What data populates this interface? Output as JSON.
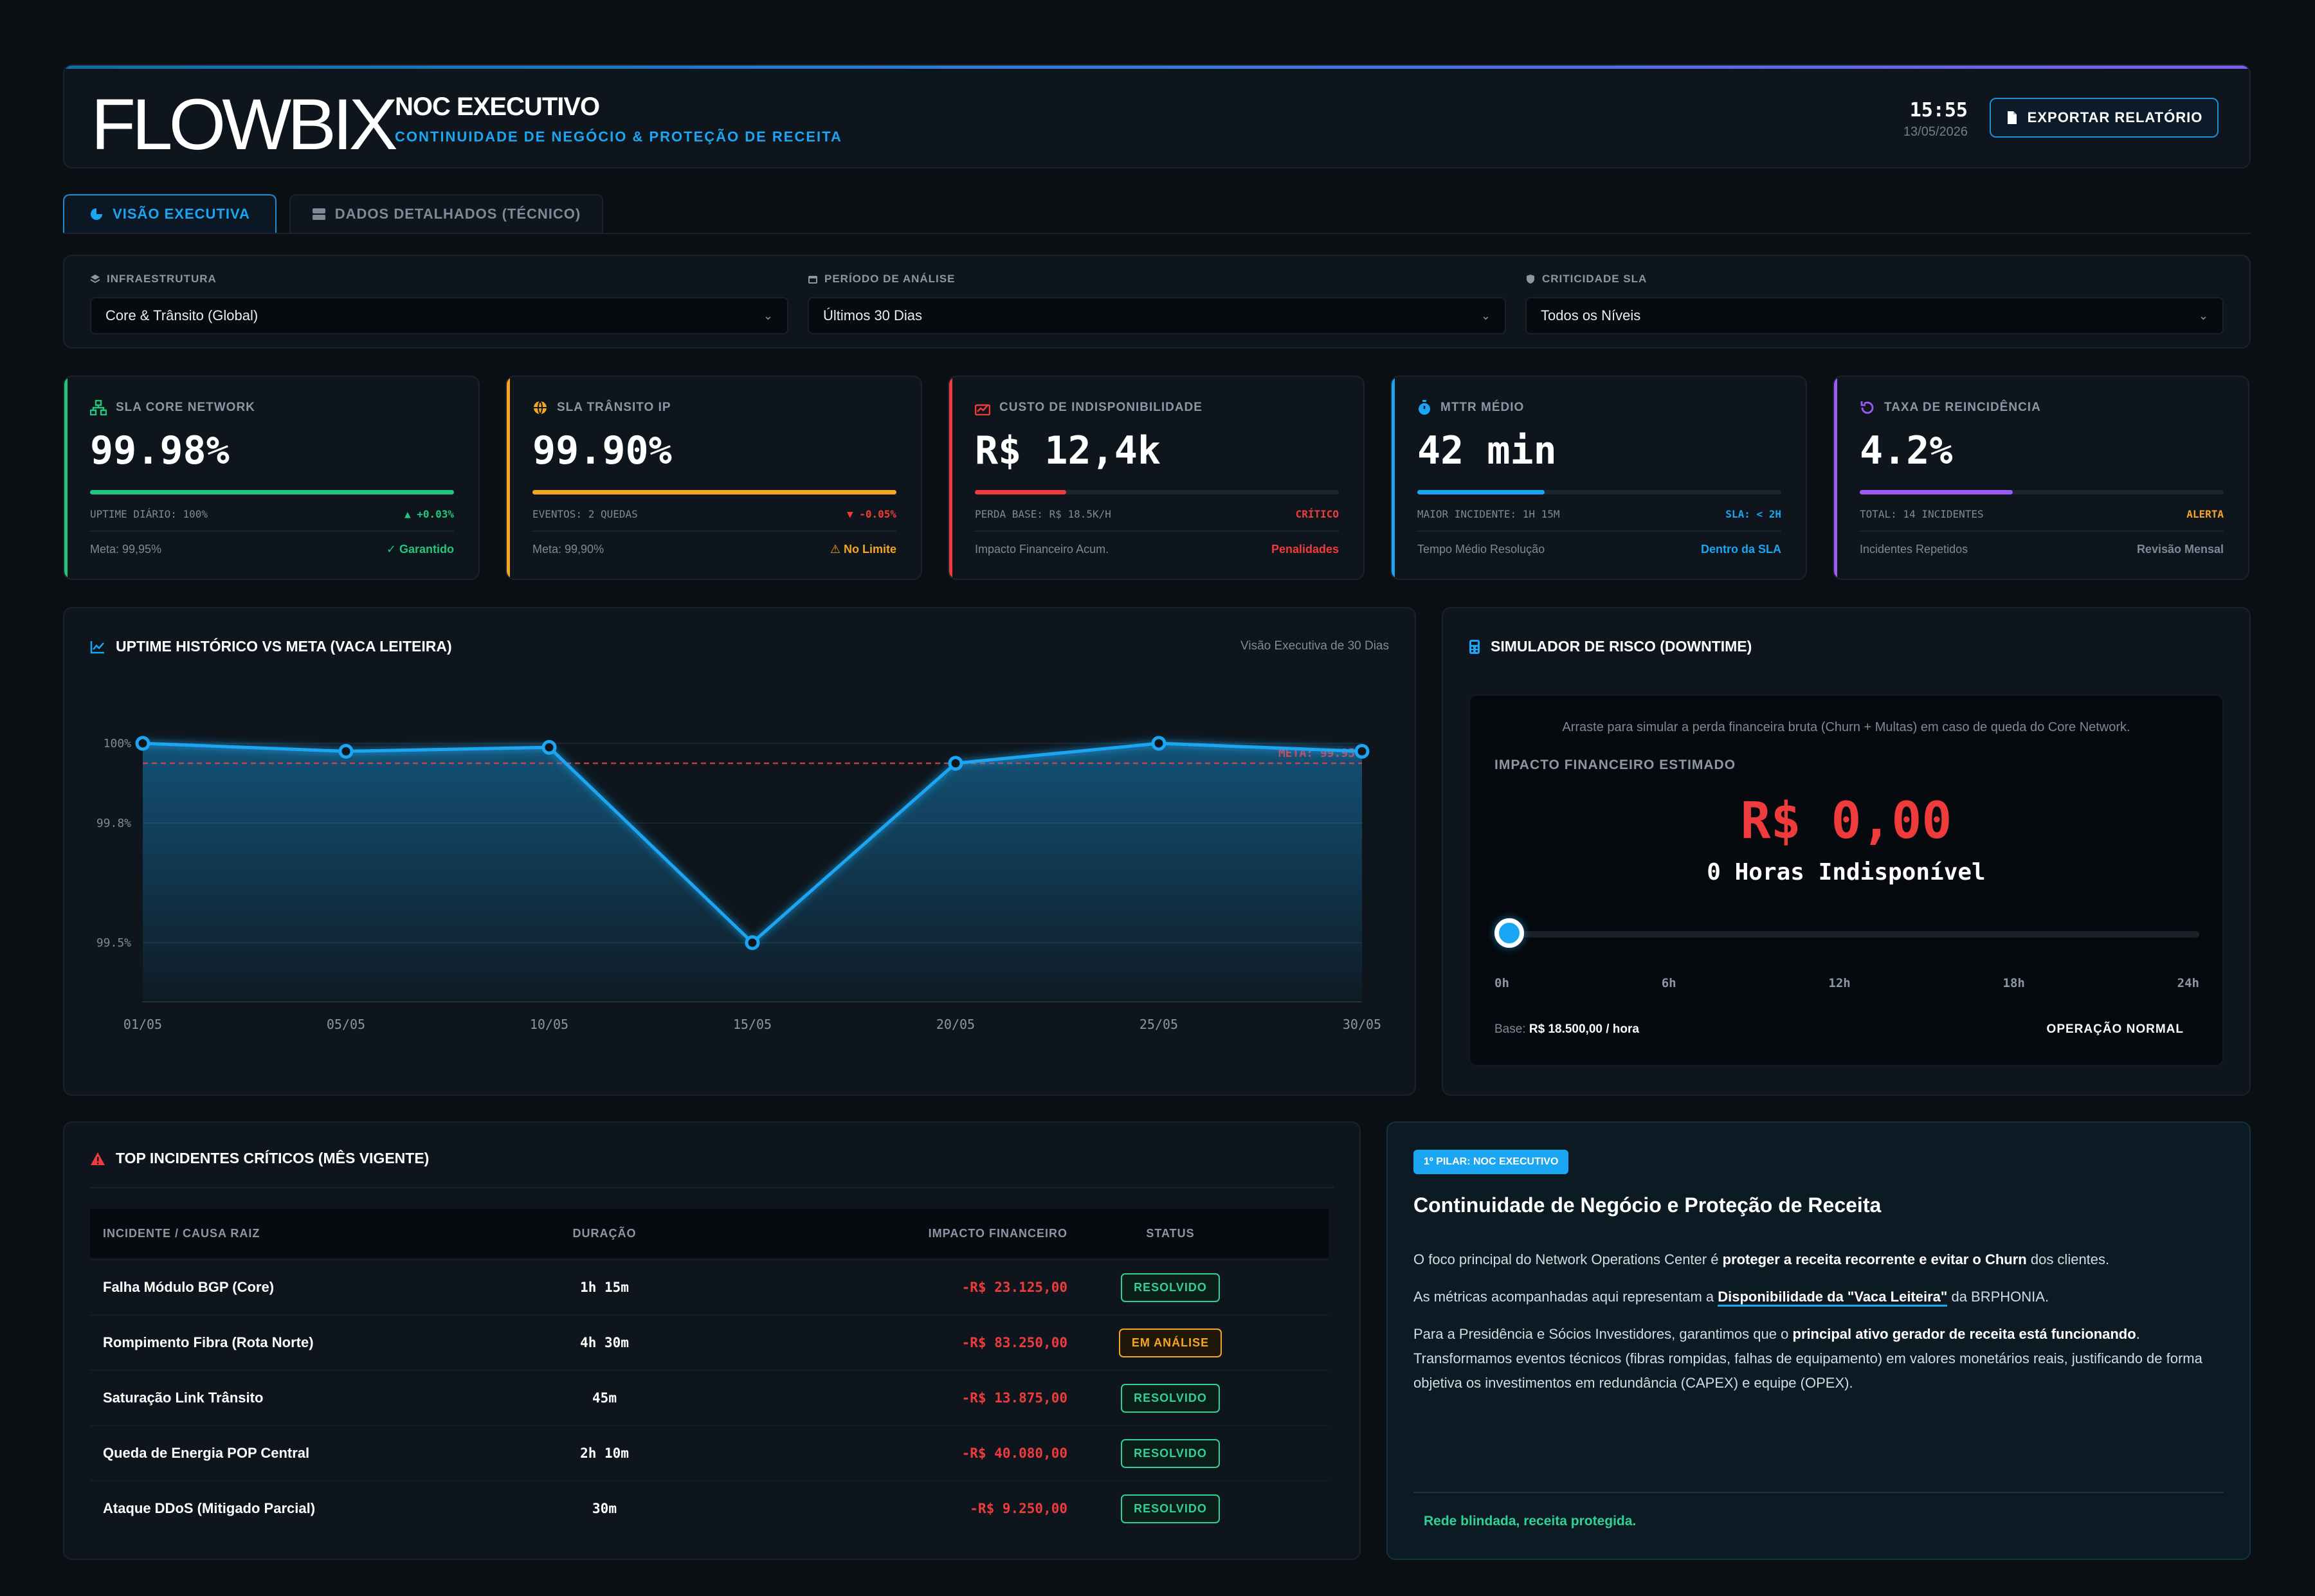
{
  "header": {
    "logo": "FLOWBIX",
    "title": "NOC EXECUTIVO",
    "subtitle": "CONTINUIDADE DE NEGÓCIO & PROTEÇÃO DE RECEITA",
    "time": "15:55",
    "date": "13/05/2026",
    "export_label": "EXPORTAR RELATÓRIO"
  },
  "tabs": [
    {
      "label": "VISÃO EXECUTIVA",
      "active": true
    },
    {
      "label": "DADOS DETALHADOS (TÉCNICO)",
      "active": false
    }
  ],
  "filters": [
    {
      "label": "INFRAESTRUTURA",
      "value": "Core & Trânsito (Global)"
    },
    {
      "label": "PERÍODO DE ANÁLISE",
      "value": "Últimos 30 Dias"
    },
    {
      "label": "CRITICIDADE SLA",
      "value": "Todos os Níveis"
    }
  ],
  "kpis": [
    {
      "label": "SLA CORE NETWORK",
      "value": "99.98%",
      "progress": 1.0,
      "color": "#22c57e",
      "row1_left": "UPTIME DIÁRIO: 100%",
      "row1_right": "▲ +0.03%",
      "row2_left": "Meta: 99,95%",
      "row2_right": "✓ Garantido"
    },
    {
      "label": "SLA TRÂNSITO IP",
      "value": "99.90%",
      "progress": 1.0,
      "color": "#f5a524",
      "row1_left": "EVENTOS: 2 QUEDAS",
      "row1_right": "▼ -0.05%",
      "row2_left": "Meta: 99,90%",
      "row2_right": "⚠ No Limite"
    },
    {
      "label": "CUSTO DE INDISPONIBILIDADE",
      "value": "R$ 12,4k",
      "progress": 0.25,
      "color": "#ef3b3b",
      "row1_left": "PERDA BASE: R$ 18.5K/H",
      "row1_right": "CRÍTICO",
      "row2_left": "Impacto Financeiro Acum.",
      "row2_right": "Penalidades"
    },
    {
      "label": "MTTR MÉDIO",
      "value": "42 min",
      "progress": 0.35,
      "color": "#1aa6f2",
      "row1_left": "MAIOR INCIDENTE: 1H 15M",
      "row1_right": "SLA: < 2H",
      "row2_left": "Tempo Médio Resolução",
      "row2_right": "Dentro da SLA"
    },
    {
      "label": "TAXA DE REINCIDÊNCIA",
      "value": "4.2%",
      "progress": 0.42,
      "color": "#9b5cf6",
      "row1_left": "TOTAL: 14 INCIDENTES",
      "row1_right": "ALERTA",
      "row2_left": "Incidentes Repetidos",
      "row2_right": "Revisão Mensal"
    }
  ],
  "uptime_panel": {
    "title": "UPTIME HISTÓRICO VS META (VACA LEITEIRA)",
    "subtitle": "Visão Executiva de 30 Dias"
  },
  "chart_data": {
    "type": "area",
    "categories": [
      "01/05",
      "05/05",
      "10/05",
      "15/05",
      "20/05",
      "25/05",
      "30/05"
    ],
    "series": [
      {
        "values": [
          100.0,
          99.98,
          99.99,
          99.5,
          99.95,
          100.0,
          99.98
        ]
      }
    ],
    "target": {
      "label": "META: 99.95%",
      "value": 99.95
    },
    "yticks": [
      {
        "value": 100.0,
        "label": "100%"
      },
      {
        "value": 99.8,
        "label": "99.8%"
      },
      {
        "value": 99.5,
        "label": "99.5%"
      }
    ],
    "ylim": [
      99.4,
      100.0
    ],
    "grid": true,
    "line_color": "#1aa6f2",
    "target_color": "#e0414f"
  },
  "simulator": {
    "title": "SIMULADOR DE RISCO (DOWNTIME)",
    "hint": "Arraste para simular a perda financeira bruta (Churn + Multas) em caso de queda do Core Network.",
    "caption": "IMPACTO FINANCEIRO ESTIMADO",
    "value": "R$ 0,00",
    "hours_text": "0 Horas Indisponível",
    "slider_value": 0,
    "ticks": [
      "0h",
      "6h",
      "12h",
      "18h",
      "24h"
    ],
    "base_label": "Base:",
    "base_value": "R$ 18.500,00 / hora",
    "status": "OPERAÇÃO NORMAL"
  },
  "incidents": {
    "title": "TOP INCIDENTES CRÍTICOS (MÊS VIGENTE)",
    "columns": [
      "INCIDENTE / CAUSA RAIZ",
      "DURAÇÃO",
      "IMPACTO FINANCEIRO",
      "STATUS"
    ],
    "rows": [
      {
        "name": "Falha Módulo BGP (Core)",
        "duration": "1h 15m",
        "impact": "-R$ 23.125,00",
        "status": "RESOLVIDO"
      },
      {
        "name": "Rompimento Fibra (Rota Norte)",
        "duration": "4h 30m",
        "impact": "-R$ 83.250,00",
        "status": "EM ANÁLISE"
      },
      {
        "name": "Saturação Link Trânsito",
        "duration": "45m",
        "impact": "-R$ 13.875,00",
        "status": "RESOLVIDO"
      },
      {
        "name": "Queda de Energia POP Central",
        "duration": "2h 10m",
        "impact": "-R$ 40.080,00",
        "status": "RESOLVIDO"
      },
      {
        "name": "Ataque DDoS (Mitigado Parcial)",
        "duration": "30m",
        "impact": "-R$ 9.250,00",
        "status": "RESOLVIDO"
      }
    ]
  },
  "pillar": {
    "badge": "1º PILAR: NOC EXECUTIVO",
    "title": "Continuidade de Negócio e Proteção de Receita",
    "p1_a": "O foco principal do Network Operations Center é ",
    "p1_b": "proteger a receita recorrente e evitar o Churn",
    "p1_c": " dos clientes.",
    "p2_a": "As métricas acompanhadas aqui representam a ",
    "p2_b": "Disponibilidade da \"Vaca Leiteira\"",
    "p2_c": " da BRPHONIA.",
    "p3_a": "Para a Presidência e Sócios Investidores, garantimos que o ",
    "p3_b": "principal ativo gerador de receita está funcionando",
    "p3_c": ". Transformamos eventos técnicos (fibras rompidas, falhas de equipamento) em valores monetários reais, justificando de forma objetiva os investimentos em redundância (CAPEX) e equipe (OPEX).",
    "footer": "Rede blindada, receita protegida."
  }
}
